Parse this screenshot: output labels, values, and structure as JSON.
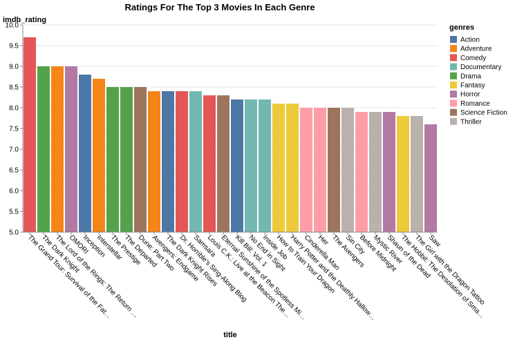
{
  "chart_data": {
    "type": "bar",
    "title": "Ratings For The Top 3 Movies In Each Genre",
    "xlabel": "title",
    "ylabel": "imdb_rating",
    "ylim": [
      5.0,
      10.0
    ],
    "yticks": [
      "5.0",
      "5.5",
      "6.0",
      "6.5",
      "7.0",
      "7.5",
      "8.0",
      "8.5",
      "9.0",
      "9.5",
      "10.0"
    ],
    "grid": true,
    "legend": {
      "title": "genres",
      "placement": "right",
      "items": [
        {
          "name": "Action",
          "color": "#4c78a8"
        },
        {
          "name": "Adventure",
          "color": "#f58518"
        },
        {
          "name": "Comedy",
          "color": "#e45756"
        },
        {
          "name": "Documentary",
          "color": "#72b7b2"
        },
        {
          "name": "Drama",
          "color": "#54a24b"
        },
        {
          "name": "Fantasy",
          "color": "#eeca3b"
        },
        {
          "name": "Horror",
          "color": "#b279a2"
        },
        {
          "name": "Romance",
          "color": "#ff9da6"
        },
        {
          "name": "Science Fiction",
          "color": "#9d755d"
        },
        {
          "name": "Thriller",
          "color": "#bab0ac"
        }
      ]
    },
    "bars": [
      {
        "label": "The Grand Tour: Survival of the Fat…",
        "value": 9.7,
        "genre": "Comedy"
      },
      {
        "label": "The Dark Knight",
        "value": 9.0,
        "genre": "Drama"
      },
      {
        "label": "The Lord of the Rings: The Return …",
        "value": 9.0,
        "genre": "Adventure"
      },
      {
        "label": "OMORI",
        "value": 9.0,
        "genre": "Horror"
      },
      {
        "label": "Inception",
        "value": 8.8,
        "genre": "Action"
      },
      {
        "label": "Interstellar",
        "value": 8.7,
        "genre": "Adventure"
      },
      {
        "label": "The Prestige",
        "value": 8.5,
        "genre": "Drama"
      },
      {
        "label": "The Departed",
        "value": 8.5,
        "genre": "Drama"
      },
      {
        "label": "Dune: Part Two",
        "value": 8.5,
        "genre": "Science Fiction"
      },
      {
        "label": "Avengers: Endgame",
        "value": 8.4,
        "genre": "Adventure"
      },
      {
        "label": "The Dark Knight Rises",
        "value": 8.4,
        "genre": "Action"
      },
      {
        "label": "Dr. Horrible's Sing-Along Blog",
        "value": 8.4,
        "genre": "Comedy"
      },
      {
        "label": "Samsara",
        "value": 8.4,
        "genre": "Documentary"
      },
      {
        "label": "Louis C.K.: Live at the Beacon The…",
        "value": 8.3,
        "genre": "Comedy"
      },
      {
        "label": "Eternal Sunshine of the Spotless Mi…",
        "value": 8.3,
        "genre": "Science Fiction"
      },
      {
        "label": "Kill Bill: Vol. 1",
        "value": 8.2,
        "genre": "Action"
      },
      {
        "label": "No End in Sight",
        "value": 8.2,
        "genre": "Documentary"
      },
      {
        "label": "Inside Job",
        "value": 8.2,
        "genre": "Documentary"
      },
      {
        "label": "How to Train Your Dragon",
        "value": 8.1,
        "genre": "Fantasy"
      },
      {
        "label": "Harry Potter and the Deathly Hallow…",
        "value": 8.1,
        "genre": "Fantasy"
      },
      {
        "label": "Cinderella Man",
        "value": 8.0,
        "genre": "Romance"
      },
      {
        "label": "Her",
        "value": 8.0,
        "genre": "Romance"
      },
      {
        "label": "The Avengers",
        "value": 8.0,
        "genre": "Science Fiction"
      },
      {
        "label": "Sin City",
        "value": 8.0,
        "genre": "Thriller"
      },
      {
        "label": "Before Midnight",
        "value": 7.9,
        "genre": "Romance"
      },
      {
        "label": "Mystic River",
        "value": 7.9,
        "genre": "Thriller"
      },
      {
        "label": "Shaun of the Dead",
        "value": 7.9,
        "genre": "Horror"
      },
      {
        "label": "The Hobbit: The Desolation of Sma…",
        "value": 7.8,
        "genre": "Fantasy"
      },
      {
        "label": "The Girl with the Dragon Tattoo",
        "value": 7.8,
        "genre": "Thriller"
      },
      {
        "label": "Saw",
        "value": 7.6,
        "genre": "Horror"
      }
    ]
  }
}
